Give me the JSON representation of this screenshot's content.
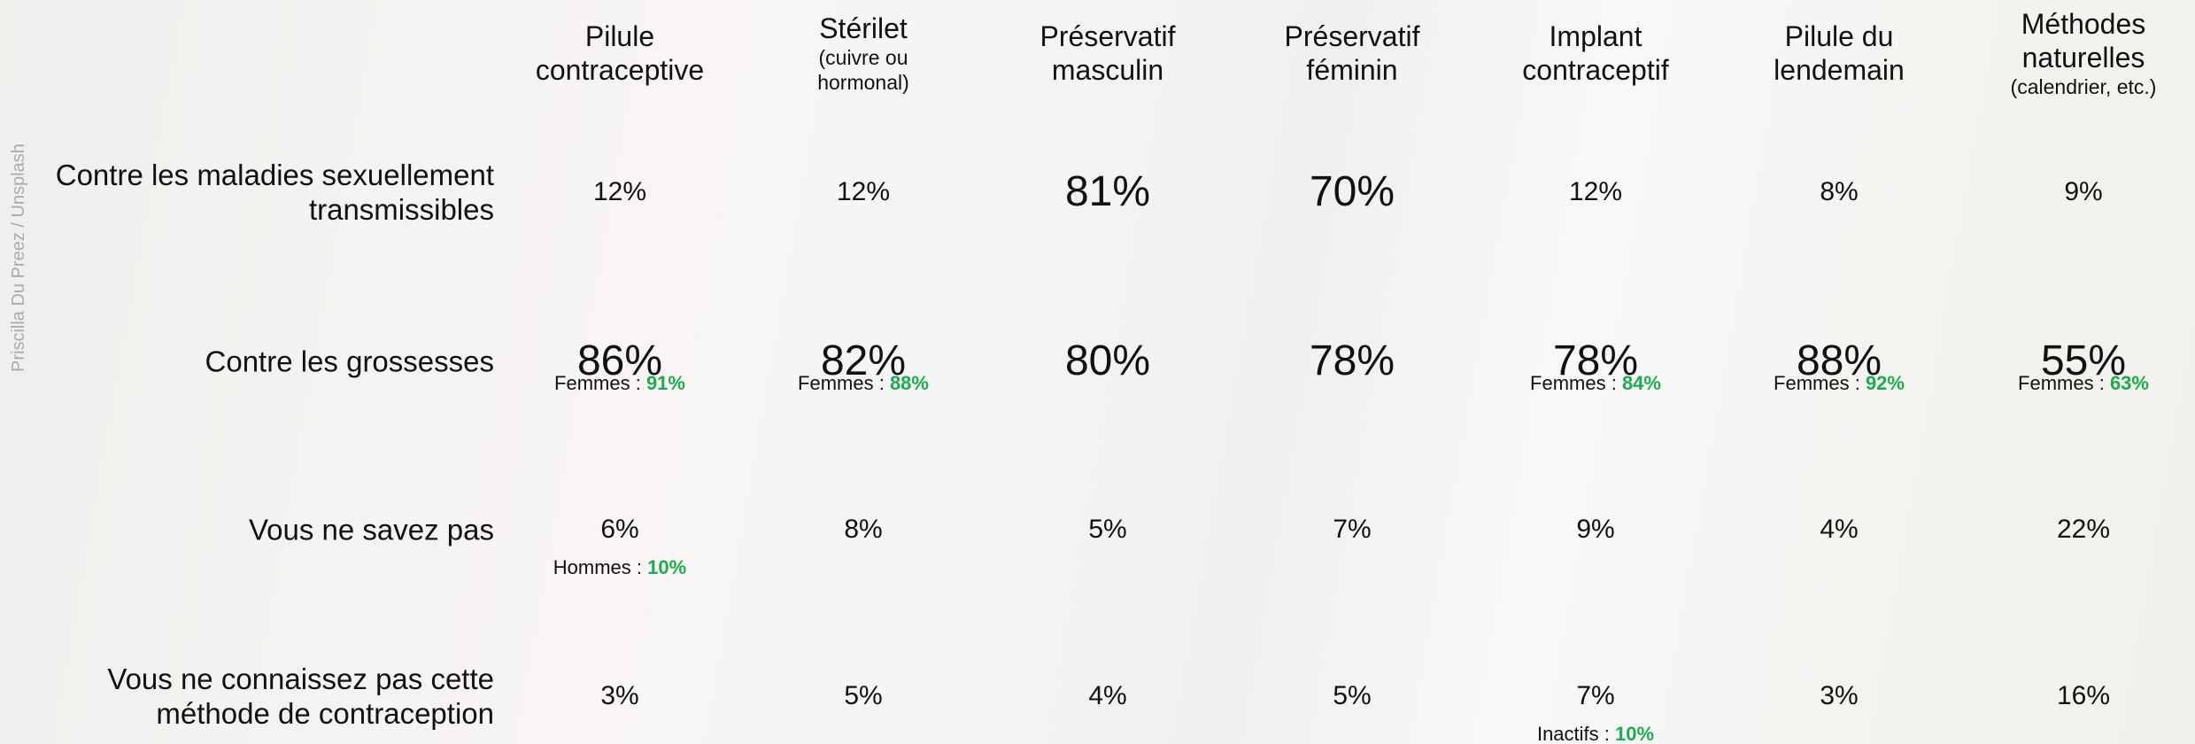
{
  "credit": "Priscilla Du Preez / Unsplash",
  "columns": [
    {
      "title": "Pilule contraceptive"
    },
    {
      "title": "Stérilet",
      "subtitle": "(cuivre ou hormonal)"
    },
    {
      "title": "Préservatif masculin"
    },
    {
      "title": "Préservatif féminin"
    },
    {
      "title": "Implant contraceptif"
    },
    {
      "title": "Pilule du lendemain"
    },
    {
      "title": "Méthodes naturelles",
      "subtitle": "(calendrier, etc.)"
    }
  ],
  "rows": [
    {
      "label": "Contre les maladies sexuellement transmissibles",
      "cells": [
        {
          "value": "12%"
        },
        {
          "value": "12%"
        },
        {
          "value": "81%",
          "emphasis": true
        },
        {
          "value": "70%",
          "emphasis": true
        },
        {
          "value": "12%"
        },
        {
          "value": "8%"
        },
        {
          "value": "9%"
        }
      ]
    },
    {
      "label": "Contre les grossesses",
      "cells": [
        {
          "value": "86%",
          "emphasis": true,
          "note": {
            "label": "Femmes :",
            "value": "91%"
          }
        },
        {
          "value": "82%",
          "emphasis": true,
          "note": {
            "label": "Femmes :",
            "value": "88%"
          }
        },
        {
          "value": "80%",
          "emphasis": true
        },
        {
          "value": "78%",
          "emphasis": true
        },
        {
          "value": "78%",
          "emphasis": true,
          "note": {
            "label": "Femmes :",
            "value": "84%"
          }
        },
        {
          "value": "88%",
          "emphasis": true,
          "note": {
            "label": "Femmes :",
            "value": "92%"
          }
        },
        {
          "value": "55%",
          "emphasis": true,
          "note": {
            "label": "Femmes :",
            "value": "63%"
          }
        }
      ]
    },
    {
      "label": "Vous ne savez pas",
      "cells": [
        {
          "value": "6%",
          "note": {
            "label": "Hommes :",
            "value": "10%"
          }
        },
        {
          "value": "8%"
        },
        {
          "value": "5%"
        },
        {
          "value": "7%"
        },
        {
          "value": "9%"
        },
        {
          "value": "4%"
        },
        {
          "value": "22%"
        }
      ]
    },
    {
      "label": "Vous ne connaissez pas cette méthode de contraception",
      "cells": [
        {
          "value": "3%"
        },
        {
          "value": "5%"
        },
        {
          "value": "4%"
        },
        {
          "value": "5%"
        },
        {
          "value": "7%",
          "note": {
            "label": "Inactifs :",
            "value": "10%"
          }
        },
        {
          "value": "3%"
        },
        {
          "value": "16%"
        }
      ]
    }
  ]
}
